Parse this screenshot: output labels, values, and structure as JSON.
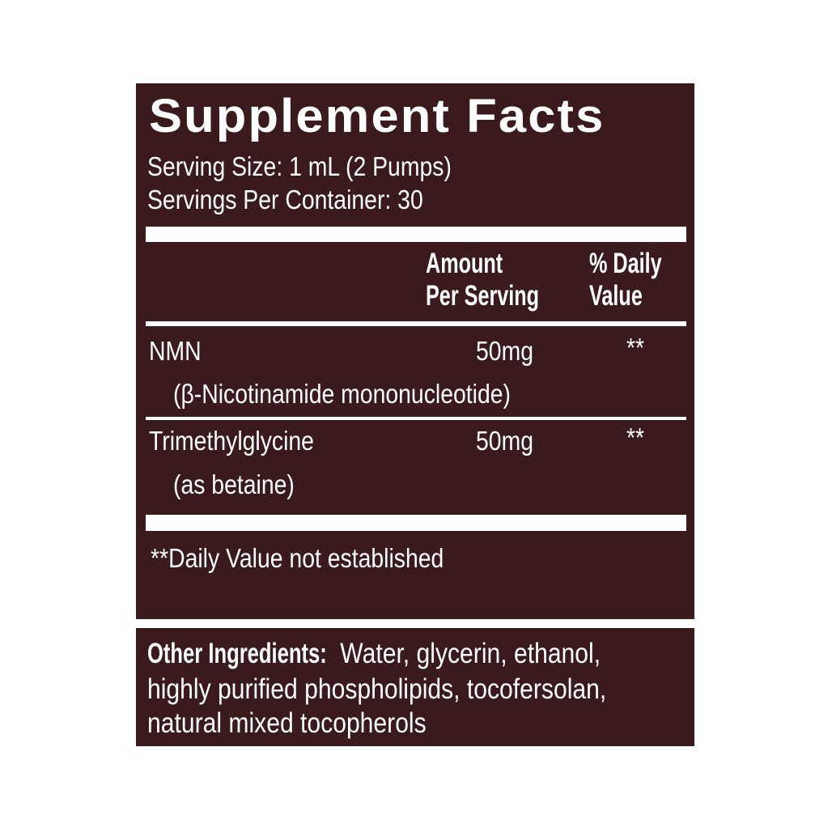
{
  "label": {
    "title": "Supplement Facts",
    "serving_size": "Serving Size: 1 mL (2 Pumps)",
    "servings_per_container": "Servings Per Container: 30",
    "header": {
      "amount_line1": "Amount",
      "amount_line2": "Per Serving",
      "dv_line1": "% Daily",
      "dv_line2": "Value"
    },
    "rows": [
      {
        "name": "NMN",
        "detail": "(β-Nicotinamide mononucleotide)",
        "amount": "50mg",
        "dv": "**"
      },
      {
        "name": "Trimethylglycine",
        "detail": "(as betaine)",
        "amount": "50mg",
        "dv": "**"
      }
    ],
    "footnote": "**Daily Value not established"
  },
  "other_ingredients": {
    "label": "Other Ingredients:",
    "line1": " Water, glycerin, ethanol,",
    "line2": "highly purified phospholipids, tocofersolan,",
    "line3": "natural mixed tocopherols"
  },
  "colors": {
    "panel": "#3a1a1c",
    "text": "#ffffff"
  }
}
